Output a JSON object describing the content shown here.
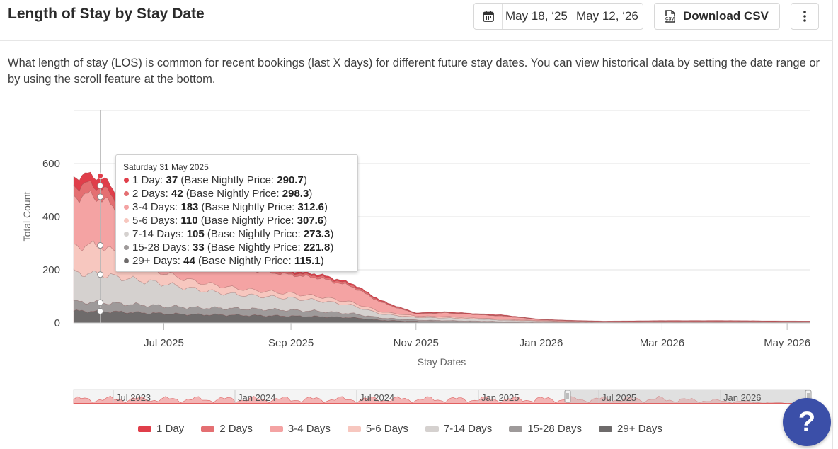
{
  "header": {
    "title": "Length of Stay by Stay Date",
    "date_start": "May 18, ‘25",
    "date_end": "May 12, ‘26",
    "download_label": "Download CSV"
  },
  "description": "What length of stay (LOS) is common for recent bookings (last X days) for different future stay dates. You can view historical data by setting the date range or by using the scroll feature at the bottom.",
  "chart_data": {
    "type": "area",
    "stacked": true,
    "ylabel": "Total Count",
    "xlabel": "Stay Dates",
    "ylim": [
      0,
      800
    ],
    "y_ticks": [
      "0",
      "200",
      "400",
      "600"
    ],
    "x_ticks": [
      "Jul 2025",
      "Sep 2025",
      "Nov 2025",
      "Jan 2026",
      "Mar 2026",
      "May 2026"
    ],
    "x_range": [
      "2025-05-18",
      "2026-05-12"
    ],
    "grid": true,
    "legend_position": "bottom",
    "x": [
      "2025-05-18",
      "2025-05-31",
      "2025-06-15",
      "2025-07-01",
      "2025-07-15",
      "2025-08-01",
      "2025-08-15",
      "2025-09-01",
      "2025-09-15",
      "2025-10-01",
      "2025-10-15",
      "2025-11-01",
      "2025-11-15",
      "2025-12-01",
      "2025-12-15",
      "2026-01-01",
      "2026-01-15",
      "2026-02-01",
      "2026-03-01",
      "2026-04-01",
      "2026-05-12"
    ],
    "series": [
      {
        "name": "29+ Days",
        "color": "#6e6b6b",
        "values": [
          45,
          44,
          40,
          35,
          32,
          30,
          28,
          26,
          24,
          20,
          10,
          6,
          5,
          4,
          3,
          2,
          2,
          1,
          1,
          1,
          1
        ]
      },
      {
        "name": "15-28 Days",
        "color": "#9e9a9a",
        "values": [
          35,
          33,
          30,
          28,
          26,
          25,
          24,
          22,
          20,
          15,
          9,
          5,
          4,
          3,
          2,
          2,
          1,
          1,
          1,
          1,
          1
        ]
      },
      {
        "name": "7-14 Days",
        "color": "#d5d1cf",
        "values": [
          110,
          105,
          95,
          85,
          70,
          55,
          50,
          45,
          40,
          30,
          15,
          10,
          10,
          8,
          5,
          3,
          2,
          1,
          1,
          1,
          1
        ]
      },
      {
        "name": "5-6 Days",
        "color": "#f7c7bf",
        "values": [
          100,
          110,
          70,
          40,
          30,
          25,
          20,
          18,
          15,
          12,
          8,
          5,
          5,
          4,
          3,
          2,
          1,
          1,
          1,
          1,
          1
        ]
      },
      {
        "name": "3-4 Days",
        "color": "#f4a3a3",
        "values": [
          190,
          183,
          140,
          100,
          90,
          80,
          75,
          70,
          70,
          60,
          35,
          8,
          14,
          12,
          12,
          3,
          2,
          1,
          2,
          2,
          1
        ]
      },
      {
        "name": "2 Days",
        "color": "#e46f72",
        "values": [
          40,
          42,
          30,
          20,
          15,
          12,
          10,
          9,
          8,
          7,
          4,
          2,
          2,
          2,
          2,
          1,
          1,
          1,
          2,
          2,
          1
        ]
      },
      {
        "name": "1 Day",
        "color": "#e03e4a",
        "values": [
          35,
          37,
          25,
          15,
          12,
          10,
          8,
          7,
          6,
          5,
          3,
          2,
          2,
          2,
          2,
          1,
          1,
          1,
          1,
          1,
          1
        ]
      }
    ],
    "navigator_labels": [
      "Jul 2023",
      "Jan 2024",
      "Jul 2024",
      "Jan 2025",
      "Jul 2025",
      "Jan 2026"
    ],
    "tooltip": {
      "date": "Saturday 31 May 2025",
      "price_label": "Base Nightly Price:",
      "rows": [
        {
          "name": "1 Day",
          "count": "37",
          "price": "290.7",
          "color": "#e03e4a"
        },
        {
          "name": "2 Days",
          "count": "42",
          "price": "298.3",
          "color": "#e46f72"
        },
        {
          "name": "3-4 Days",
          "count": "183",
          "price": "312.6",
          "color": "#f4a3a3"
        },
        {
          "name": "5-6 Days",
          "count": "110",
          "price": "307.6",
          "color": "#f7c7bf"
        },
        {
          "name": "7-14 Days",
          "count": "105",
          "price": "273.3",
          "color": "#d5d1cf"
        },
        {
          "name": "15-28 Days",
          "count": "33",
          "price": "221.8",
          "color": "#9e9a9a"
        },
        {
          "name": "29+ Days",
          "count": "44",
          "price": "115.1",
          "color": "#6e6b6b"
        }
      ]
    }
  },
  "legend": [
    {
      "name": "1 Day",
      "color": "#e03e4a"
    },
    {
      "name": "2 Days",
      "color": "#e46f72"
    },
    {
      "name": "3-4 Days",
      "color": "#f4a3a3"
    },
    {
      "name": "5-6 Days",
      "color": "#f7c7bf"
    },
    {
      "name": "7-14 Days",
      "color": "#d5d1cf"
    },
    {
      "name": "15-28 Days",
      "color": "#9e9a9a"
    },
    {
      "name": "29+ Days",
      "color": "#6e6b6b"
    }
  ],
  "help": {
    "label": "?"
  }
}
